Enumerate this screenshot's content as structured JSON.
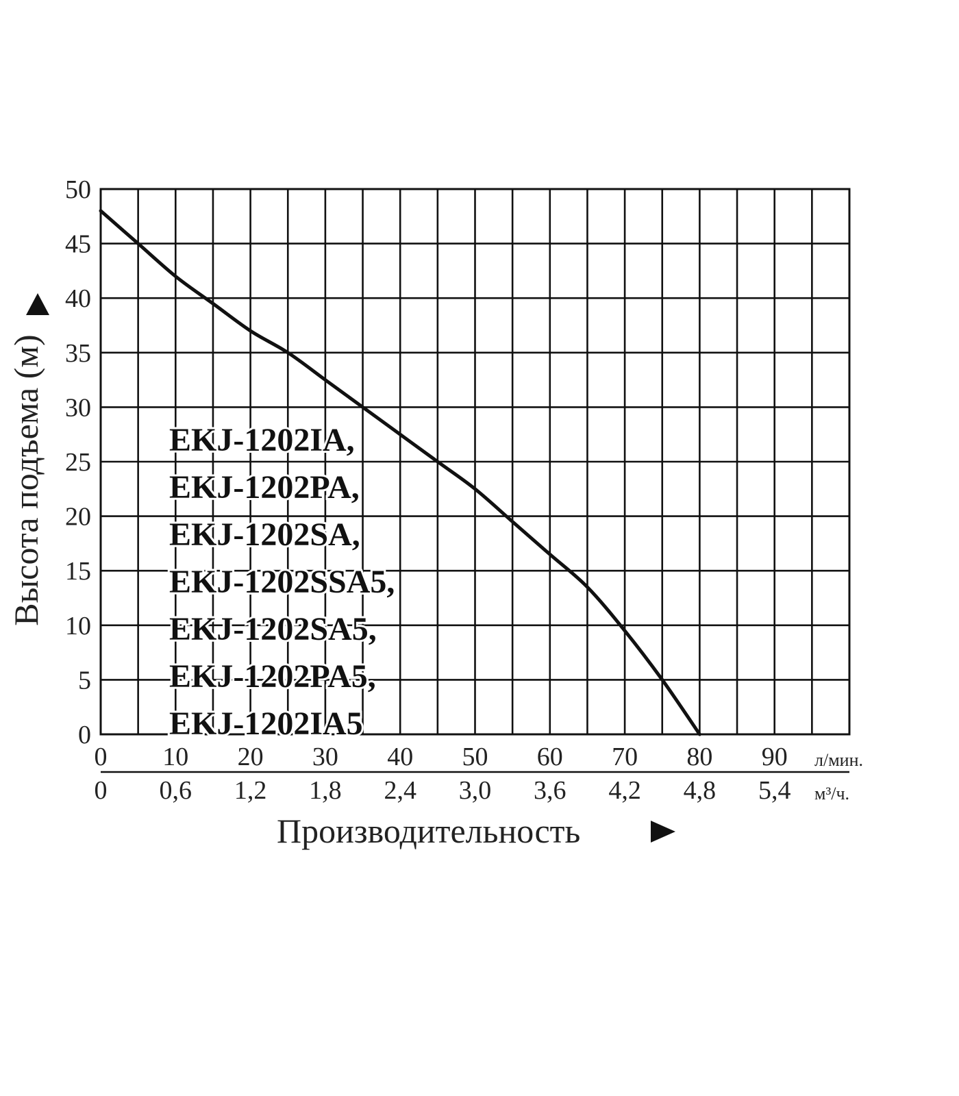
{
  "chart_data": {
    "type": "line",
    "xlabel": "Производительность",
    "ylabel": "Высота подъема (м)",
    "x_unit": "л/мин.",
    "x2_unit": "м³/ч.",
    "xlim": [
      0,
      100
    ],
    "ylim": [
      0,
      50
    ],
    "grid": true,
    "x_ticks": [
      "0",
      "10",
      "20",
      "30",
      "40",
      "50",
      "60",
      "70",
      "80",
      "90"
    ],
    "x2_ticks": [
      "0",
      "0,6",
      "1,2",
      "1,8",
      "2,4",
      "3,0",
      "3,6",
      "4,2",
      "4,8",
      "5,4"
    ],
    "y_ticks": [
      "0",
      "5",
      "10",
      "15",
      "20",
      "25",
      "30",
      "35",
      "40",
      "45",
      "50"
    ],
    "series": [
      {
        "x": [
          0,
          5,
          10,
          15,
          20,
          25,
          30,
          35,
          40,
          45,
          50,
          55,
          60,
          65,
          70,
          75,
          80
        ],
        "y": [
          48,
          45,
          42,
          39.5,
          37,
          35,
          32.5,
          30,
          27.5,
          25,
          22.5,
          19.5,
          16.5,
          13.5,
          9.5,
          5,
          0
        ]
      }
    ],
    "annotations": [
      "EKJ-1202IA,",
      "EKJ-1202PA,",
      "EKJ-1202SA,",
      "EKJ-1202SSA5,",
      "EKJ-1202SA5,",
      "EKJ-1202PA5,",
      "EKJ-1202IA5"
    ]
  }
}
